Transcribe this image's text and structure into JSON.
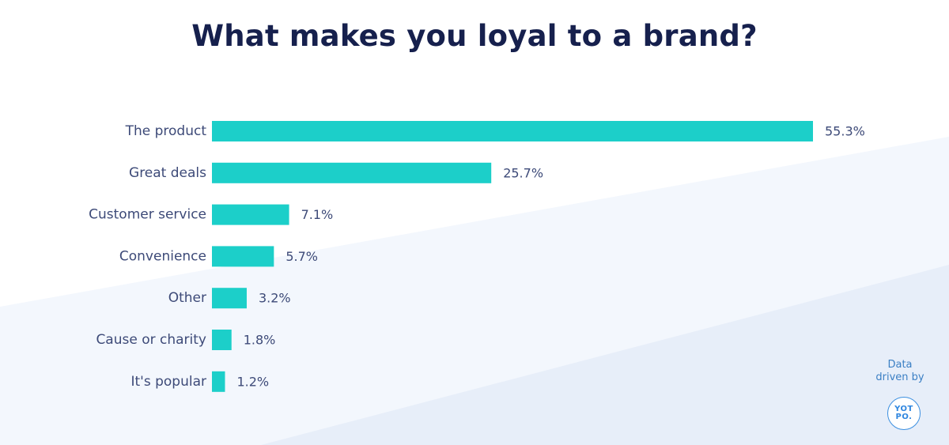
{
  "colors": {
    "bar": "#1ccfc9",
    "title": "#16204d",
    "label": "#3d4a78",
    "bg_band_light": "#f3f7fd",
    "bg_band_dark": "#e7eef9",
    "logo": "#2f86df"
  },
  "chart_data": {
    "type": "bar",
    "orientation": "horizontal",
    "title": "What makes you loyal to a brand?",
    "xlabel": "",
    "ylabel": "",
    "categories": [
      "The product",
      "Great deals",
      "Customer service",
      "Convenience",
      "Other",
      "Cause or charity",
      "It's popular"
    ],
    "values": [
      55.3,
      25.7,
      7.1,
      5.7,
      3.2,
      1.8,
      1.2
    ],
    "value_labels": [
      "55.3%",
      "25.7%",
      "7.1%",
      "5.7%",
      "3.2%",
      "1.8%",
      "1.2%"
    ],
    "unit": "%",
    "grid": false,
    "legend": "none"
  },
  "credit": {
    "line1": "Data",
    "line2": "driven by",
    "logo_line1": "YOT",
    "logo_line2": "PO."
  }
}
